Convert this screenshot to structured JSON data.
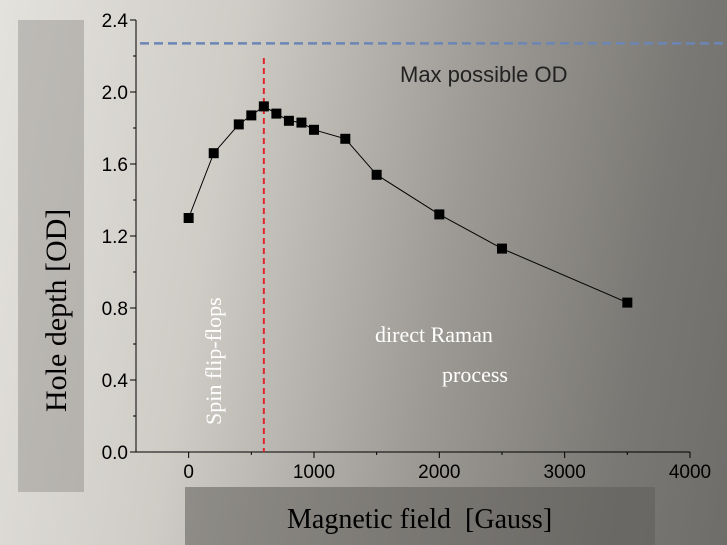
{
  "chart_data": {
    "type": "line",
    "xlabel": "Magnetic field  [Gauss]",
    "ylabel": "Hole depth [OD]",
    "xlim": [
      -420,
      4000
    ],
    "ylim": [
      0.0,
      2.4
    ],
    "x_ticks": [
      "0",
      "1000",
      "2000",
      "3000",
      "4000"
    ],
    "x_tick_values": [
      0,
      1000,
      2000,
      3000,
      4000
    ],
    "y_ticks": [
      "0.0",
      "0.4",
      "0.8",
      "1.2",
      "1.6",
      "2.0",
      "2.4"
    ],
    "y_tick_values": [
      0.0,
      0.4,
      0.8,
      1.2,
      1.6,
      2.0,
      2.4
    ],
    "series": [
      {
        "x": [
          0,
          200,
          400,
          500,
          600,
          700,
          800,
          900,
          1000,
          1250,
          1500,
          2000,
          2500,
          3500
        ],
        "y": [
          1.3,
          1.66,
          1.82,
          1.87,
          1.92,
          1.88,
          1.84,
          1.83,
          1.79,
          1.74,
          1.54,
          1.32,
          1.13,
          0.83
        ]
      }
    ],
    "reference_lines": [
      {
        "orientation": "horizontal",
        "value": 2.27,
        "label": "Max possible  OD",
        "color": "#6b86b6",
        "style": "dashed"
      },
      {
        "orientation": "vertical",
        "value": 600,
        "color": "#e0262b",
        "style": "dashed"
      }
    ],
    "annotations": {
      "spin": "Spin flip-flops",
      "raman_line1": "direct Raman",
      "raman_line2": "process"
    },
    "colors": {
      "series": "#000000",
      "annotation_text": "#ffffff"
    },
    "grid": false,
    "legend": "none"
  }
}
